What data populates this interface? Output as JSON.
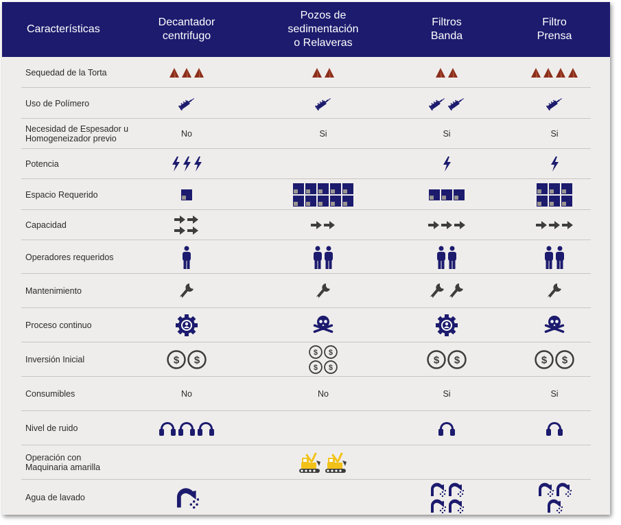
{
  "header": {
    "characteristics": "Características",
    "col1": "Decantador\ncentrifugo",
    "col2": "Pozos de\nsedimentación\no Relaveras",
    "col3": "Filtros\nBanda",
    "col4": "Filtro\nPrensa"
  },
  "colors": {
    "header_bg": "#1c1b6e",
    "navy": "#1c1b6e",
    "cone": "#8a2e1c",
    "dark_gray": "#3d3d3d",
    "yellow": "#f2c21b",
    "background": "#efedeb"
  },
  "rows": [
    {
      "label": "Sequedad de la Torta",
      "icon": "cone-icon",
      "counts": [
        3,
        2,
        2,
        4
      ]
    },
    {
      "label": "Uso de Polímero",
      "icon": "syringe-icon",
      "counts": [
        1,
        1,
        2,
        1
      ]
    },
    {
      "label": "Necesidad de Espesador u\nHomogeneizador previo",
      "values": [
        "No",
        "Si",
        "Si",
        "Si"
      ]
    },
    {
      "label": "Potencia",
      "icon": "lightning-icon",
      "counts": [
        3,
        0,
        1,
        1
      ]
    },
    {
      "label": "Espacio Requerido",
      "icon": "space-block-icon",
      "counts": [
        1,
        10,
        3,
        6
      ]
    },
    {
      "label": "Capacidad",
      "icon": "arrow-right-icon",
      "counts": [
        4,
        2,
        3,
        3
      ]
    },
    {
      "label": "Operadores requeridos",
      "icon": "person-icon",
      "counts": [
        1,
        2,
        2,
        2
      ]
    },
    {
      "label": "Mantenimiento",
      "icon": "wrench-icon",
      "counts": [
        1,
        1,
        2,
        1
      ]
    },
    {
      "label": "Proceso continuo",
      "icons": [
        "gear-badge-icon",
        "skull-crossbones-icon",
        "gear-badge-icon",
        "skull-crossbones-icon"
      ]
    },
    {
      "label": "Inversión Inicial",
      "icon": "dollar-coin-icon",
      "counts": [
        2,
        4,
        2,
        2
      ]
    },
    {
      "label": "Consumibles",
      "values": [
        "No",
        "No",
        "Si",
        "Si"
      ]
    },
    {
      "label": "Nivel de ruido",
      "icon": "headphones-icon",
      "counts": [
        3,
        0,
        1,
        1
      ]
    },
    {
      "label": "Operación con\nMaquinaria amarilla",
      "icon": "excavator-icon",
      "counts": [
        0,
        2,
        0,
        0
      ]
    },
    {
      "label": "Agua de lavado",
      "icon": "shower-icon",
      "counts": [
        1,
        0,
        4,
        3
      ]
    }
  ]
}
